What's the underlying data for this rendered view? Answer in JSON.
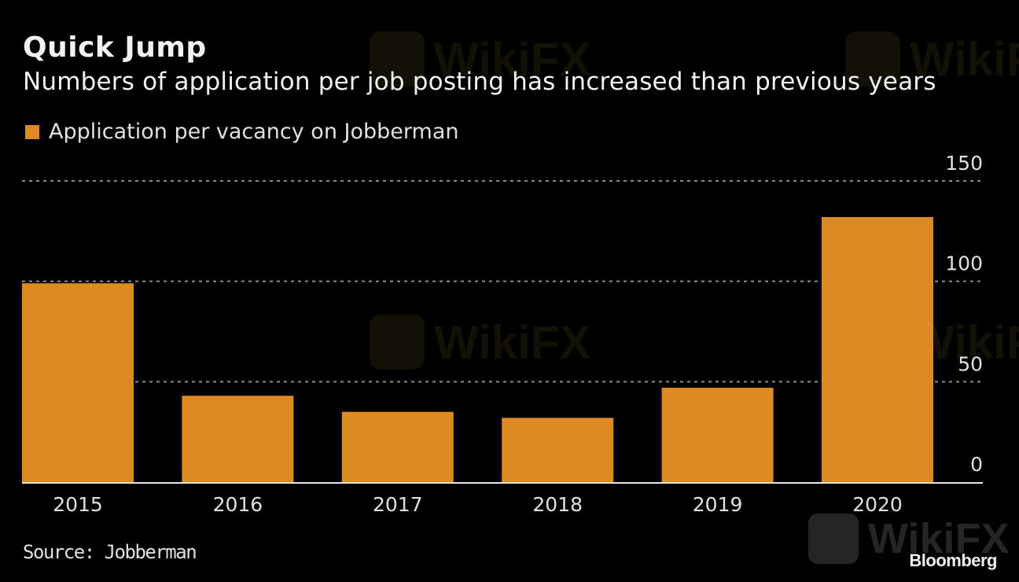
{
  "header": {
    "title": "Quick Jump",
    "subtitle": "Numbers of application per job posting has increased than previous years"
  },
  "footer": {
    "source": "Source: Jobberman",
    "brand": "Bloomberg",
    "watermark": "WikiFX"
  },
  "colors": {
    "bar": "#dc8a24",
    "background": "#000000",
    "gridline": "#8a8a8a",
    "text": "#e0e0e0"
  },
  "chart_data": {
    "type": "bar",
    "title": "Quick Jump",
    "subtitle": "Numbers of application per job posting has increased than previous years",
    "categories": [
      "2015",
      "2016",
      "2017",
      "2018",
      "2019",
      "2020"
    ],
    "series": [
      {
        "name": "Application per vacancy on Jobberman",
        "values": [
          99,
          43,
          35,
          32,
          47,
          132
        ]
      }
    ],
    "xlabel": "",
    "ylabel": "",
    "ylim": [
      0,
      150
    ],
    "yticks": [
      0,
      50,
      100,
      150
    ],
    "ytick_labels": [
      "0",
      "50",
      "100",
      "150"
    ],
    "y_axis_side": "right",
    "grid": true,
    "legend_position": "top-left",
    "source": "Source: Jobberman"
  }
}
